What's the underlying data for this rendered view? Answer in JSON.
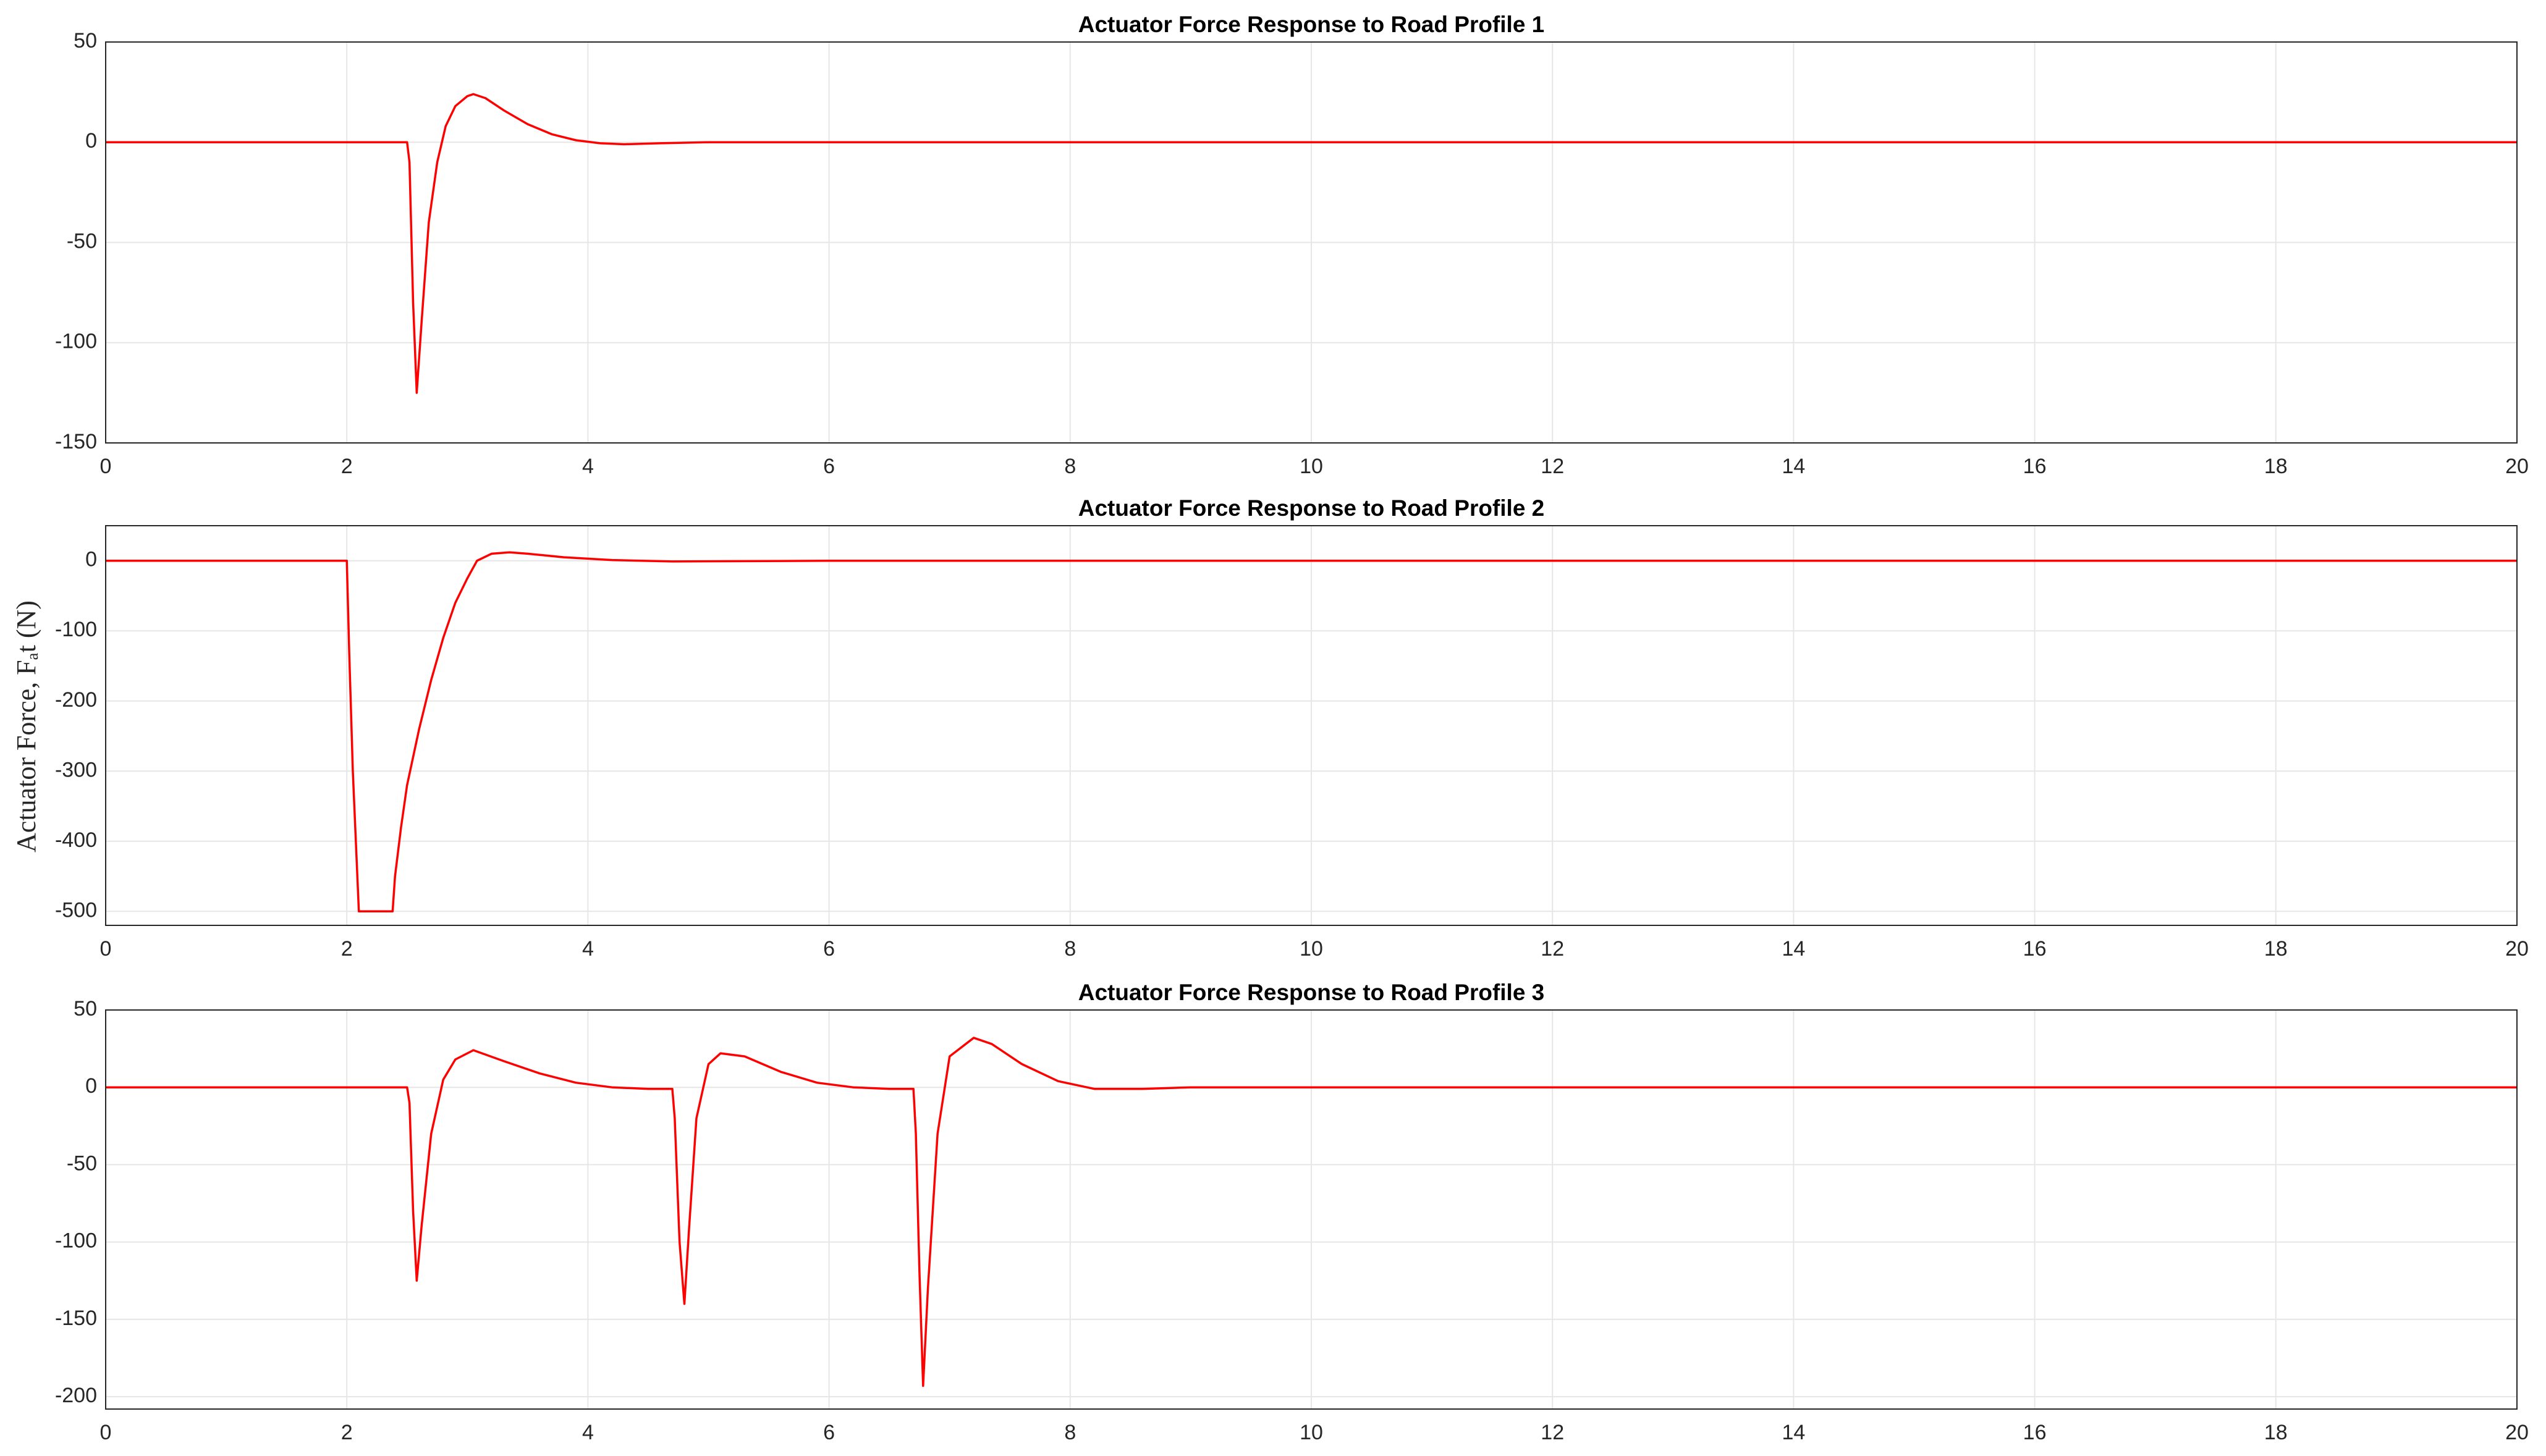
{
  "chart_data": [
    {
      "type": "line",
      "title": "Actuator Force Response to Road Profile 1",
      "color": "#ff0000",
      "grid": true,
      "x": [
        0,
        2.5,
        2.52,
        2.55,
        2.58,
        2.62,
        2.68,
        2.75,
        2.82,
        2.9,
        3.0,
        3.05,
        3.15,
        3.3,
        3.5,
        3.7,
        3.9,
        4.1,
        4.3,
        4.6,
        5,
        6,
        20
      ],
      "values": [
        0,
        0,
        -10,
        -80,
        -125,
        -90,
        -40,
        -10,
        8,
        18,
        23,
        24,
        22,
        16,
        9,
        4,
        1,
        -0.5,
        -1,
        -0.5,
        0,
        0,
        0
      ],
      "xlim": [
        0,
        20
      ],
      "xticks": [
        0,
        2,
        4,
        6,
        8,
        10,
        12,
        14,
        16,
        18,
        20
      ],
      "ylim": [
        -150,
        50
      ],
      "yticks": [
        -150,
        -100,
        -50,
        0,
        50
      ]
    },
    {
      "type": "line",
      "title": "Actuator Force Response to Road Profile 2",
      "ylabel": "Actuator Force, Fₐt (N)",
      "color": "#ff0000",
      "grid": true,
      "x": [
        0,
        2.0,
        2.02,
        2.05,
        2.1,
        2.38,
        2.4,
        2.45,
        2.5,
        2.6,
        2.7,
        2.8,
        2.9,
        3.0,
        3.08,
        3.2,
        3.35,
        3.5,
        3.8,
        4.2,
        4.7,
        6,
        20
      ],
      "values": [
        0,
        0,
        -130,
        -300,
        -500,
        -500,
        -450,
        -380,
        -320,
        -240,
        -170,
        -110,
        -60,
        -25,
        0,
        10,
        12,
        10,
        5,
        1,
        -1,
        0,
        0
      ],
      "xlim": [
        0,
        20
      ],
      "xticks": [
        0,
        2,
        4,
        6,
        8,
        10,
        12,
        14,
        16,
        18,
        20
      ],
      "ylim": [
        -520,
        50
      ],
      "yticks": [
        -500,
        -400,
        -300,
        -200,
        -100,
        0
      ]
    },
    {
      "type": "line",
      "title": "Actuator Force Response to Road Profile 3",
      "color": "#ff0000",
      "grid": true,
      "x": [
        0,
        2.5,
        2.52,
        2.55,
        2.58,
        2.62,
        2.7,
        2.8,
        2.9,
        3.05,
        3.3,
        3.6,
        3.9,
        4.2,
        4.5,
        4.7,
        4.72,
        4.76,
        4.8,
        4.84,
        4.9,
        5.0,
        5.1,
        5.3,
        5.6,
        5.9,
        6.2,
        6.5,
        6.7,
        6.72,
        6.75,
        6.78,
        6.82,
        6.9,
        7.0,
        7.2,
        7.35,
        7.6,
        7.9,
        8.2,
        8.6,
        9,
        10,
        20
      ],
      "values": [
        0,
        0,
        -10,
        -80,
        -125,
        -90,
        -30,
        5,
        18,
        24,
        17,
        9,
        3,
        0,
        -1,
        -1,
        -20,
        -100,
        -140,
        -90,
        -20,
        15,
        22,
        20,
        10,
        3,
        0,
        -1,
        -1,
        -30,
        -120,
        -193,
        -130,
        -30,
        20,
        32,
        28,
        15,
        4,
        -1,
        -1,
        0,
        0,
        0
      ],
      "xlim": [
        0,
        20
      ],
      "xticks": [
        0,
        2,
        4,
        6,
        8,
        10,
        12,
        14,
        16,
        18,
        20
      ],
      "ylim": [
        -208,
        50
      ],
      "yticks": [
        -200,
        -150,
        -100,
        -50,
        0,
        50
      ]
    }
  ]
}
